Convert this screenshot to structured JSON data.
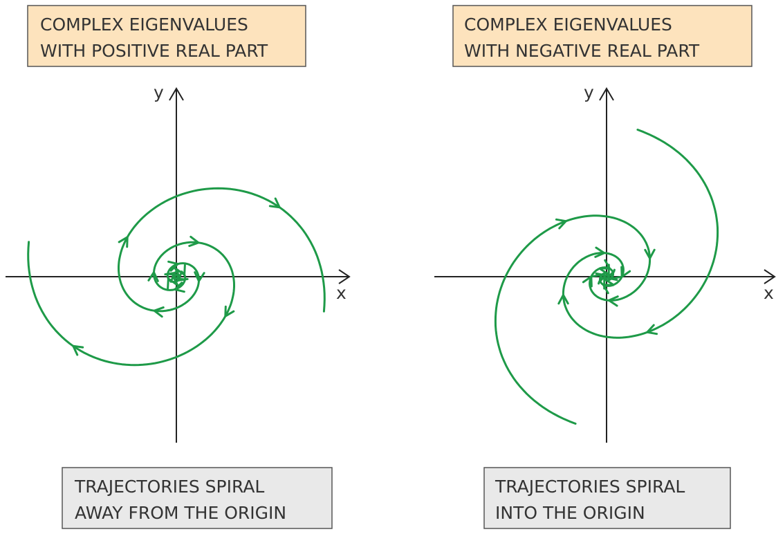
{
  "panels": [
    {
      "title": [
        "COMPLEX EIGENVALUES",
        "WITH POSITIVE REAL PART"
      ],
      "y_label": "y",
      "x_label": "x",
      "caption": [
        "TRAJECTORIES SPIRAL",
        "AWAY FROM THE ORIGIN"
      ]
    },
    {
      "title": [
        "COMPLEX EIGENVALUES",
        "WITH NEGATIVE REAL PART"
      ],
      "y_label": "y",
      "x_label": "x",
      "caption": [
        "TRAJECTORIES SPIRAL",
        "INTO THE ORIGIN"
      ]
    }
  ]
}
